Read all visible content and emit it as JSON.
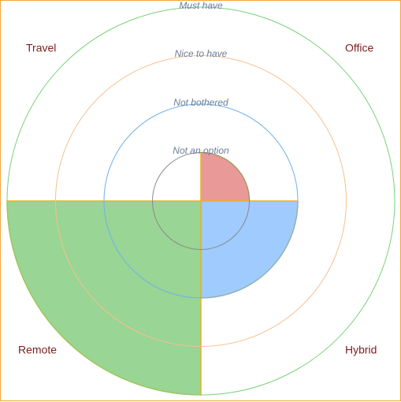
{
  "chart_data": {
    "type": "polar-area",
    "levels": [
      "Not an option",
      "Not bothered",
      "Nice to have",
      "Must have"
    ],
    "categories": [
      "Office",
      "Hybrid",
      "Remote",
      "Travel"
    ],
    "values": [
      1,
      2,
      4,
      0
    ],
    "rmax": 4,
    "colors": {
      "Office": "#ea9999",
      "Hybrid": "#9fcbff",
      "Remote": "#99d594",
      "Travel": "#cccccc"
    },
    "ring_colors": [
      "#8a8a8a",
      "#6fb2e8",
      "#f6c08f",
      "#7ad17a"
    ],
    "slice_stroke": "#e6b422"
  },
  "frame": {
    "border_color": "#f4a63a"
  }
}
